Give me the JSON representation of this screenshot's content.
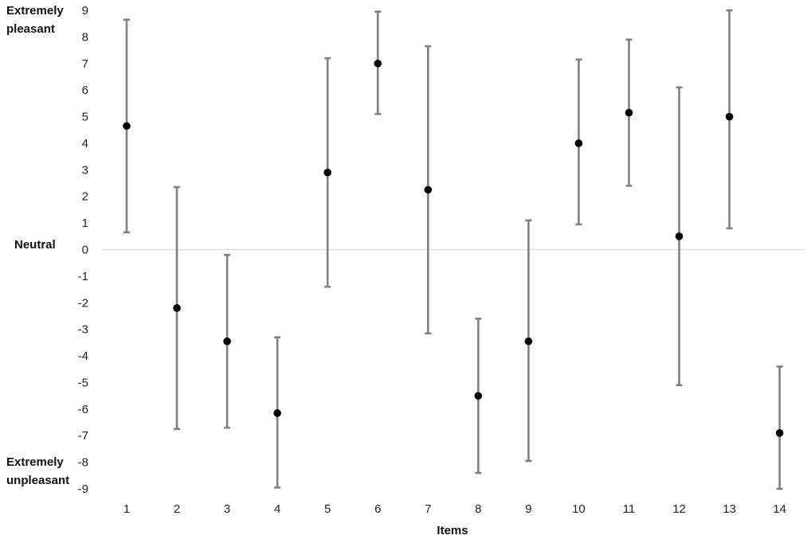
{
  "chart_data": {
    "type": "scatter",
    "title": "",
    "xlabel": "Items",
    "ylabel": "",
    "ylim": [
      -9,
      9
    ],
    "yticks": [
      9,
      8,
      7,
      6,
      5,
      4,
      3,
      2,
      1,
      0,
      -1,
      -2,
      -3,
      -4,
      -5,
      -6,
      -7,
      -8,
      -9
    ],
    "x": [
      "1",
      "2",
      "3",
      "4",
      "5",
      "6",
      "7",
      "8",
      "9",
      "10",
      "11",
      "12",
      "13",
      "14"
    ],
    "series": [
      {
        "values": [
          4.65,
          -2.2,
          -3.45,
          -6.15,
          2.9,
          7.0,
          2.25,
          -5.5,
          -3.45,
          4.0,
          5.15,
          0.5,
          5.0,
          -6.9
        ],
        "err_low": [
          0.65,
          -6.75,
          -6.7,
          -8.95,
          -1.4,
          5.1,
          -3.15,
          -8.4,
          -7.95,
          0.95,
          2.4,
          -5.1,
          0.8,
          -9.0
        ],
        "err_high": [
          8.65,
          2.35,
          -0.2,
          -3.3,
          7.2,
          8.95,
          7.65,
          -2.6,
          1.1,
          7.15,
          7.9,
          6.1,
          9.0,
          -4.4
        ]
      }
    ],
    "side_labels": {
      "top": "Extremely pleasant",
      "middle": "Neutral",
      "bottom": "Extremely unpleasant"
    },
    "grid": false,
    "zero_line": true,
    "marker_color": "#000000",
    "errorbar_color": "#808080",
    "zero_line_color": "#d9d9d9"
  }
}
